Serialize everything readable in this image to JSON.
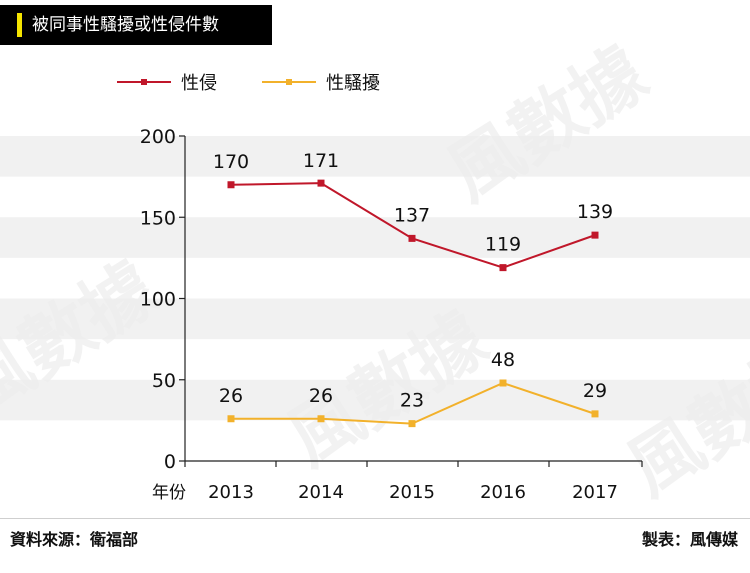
{
  "title": "被同事性騷擾或性侵件數",
  "source": "資料來源：衛福部",
  "credit": "製表：風傳媒",
  "watermark": "風數據",
  "colors": {
    "title_bg": "#000000",
    "title_accent": "#f5e400",
    "series_1": "#c0172a",
    "series_2": "#f2b12b",
    "band": "#ececec"
  },
  "chart_data": {
    "type": "line",
    "title": "",
    "xlabel": "年份",
    "ylabel": "",
    "categories": [
      "2013",
      "2014",
      "2015",
      "2016",
      "2017"
    ],
    "ylim": [
      0,
      200
    ],
    "yticks": [
      0,
      50,
      100,
      150,
      200
    ],
    "grid": "horizontal bands",
    "legend": "top-left",
    "series": [
      {
        "name": "性侵",
        "values": [
          170,
          171,
          137,
          119,
          139
        ],
        "color": "#c0172a"
      },
      {
        "name": "性騷擾",
        "values": [
          26,
          26,
          23,
          48,
          29
        ],
        "color": "#f2b12b"
      }
    ]
  }
}
